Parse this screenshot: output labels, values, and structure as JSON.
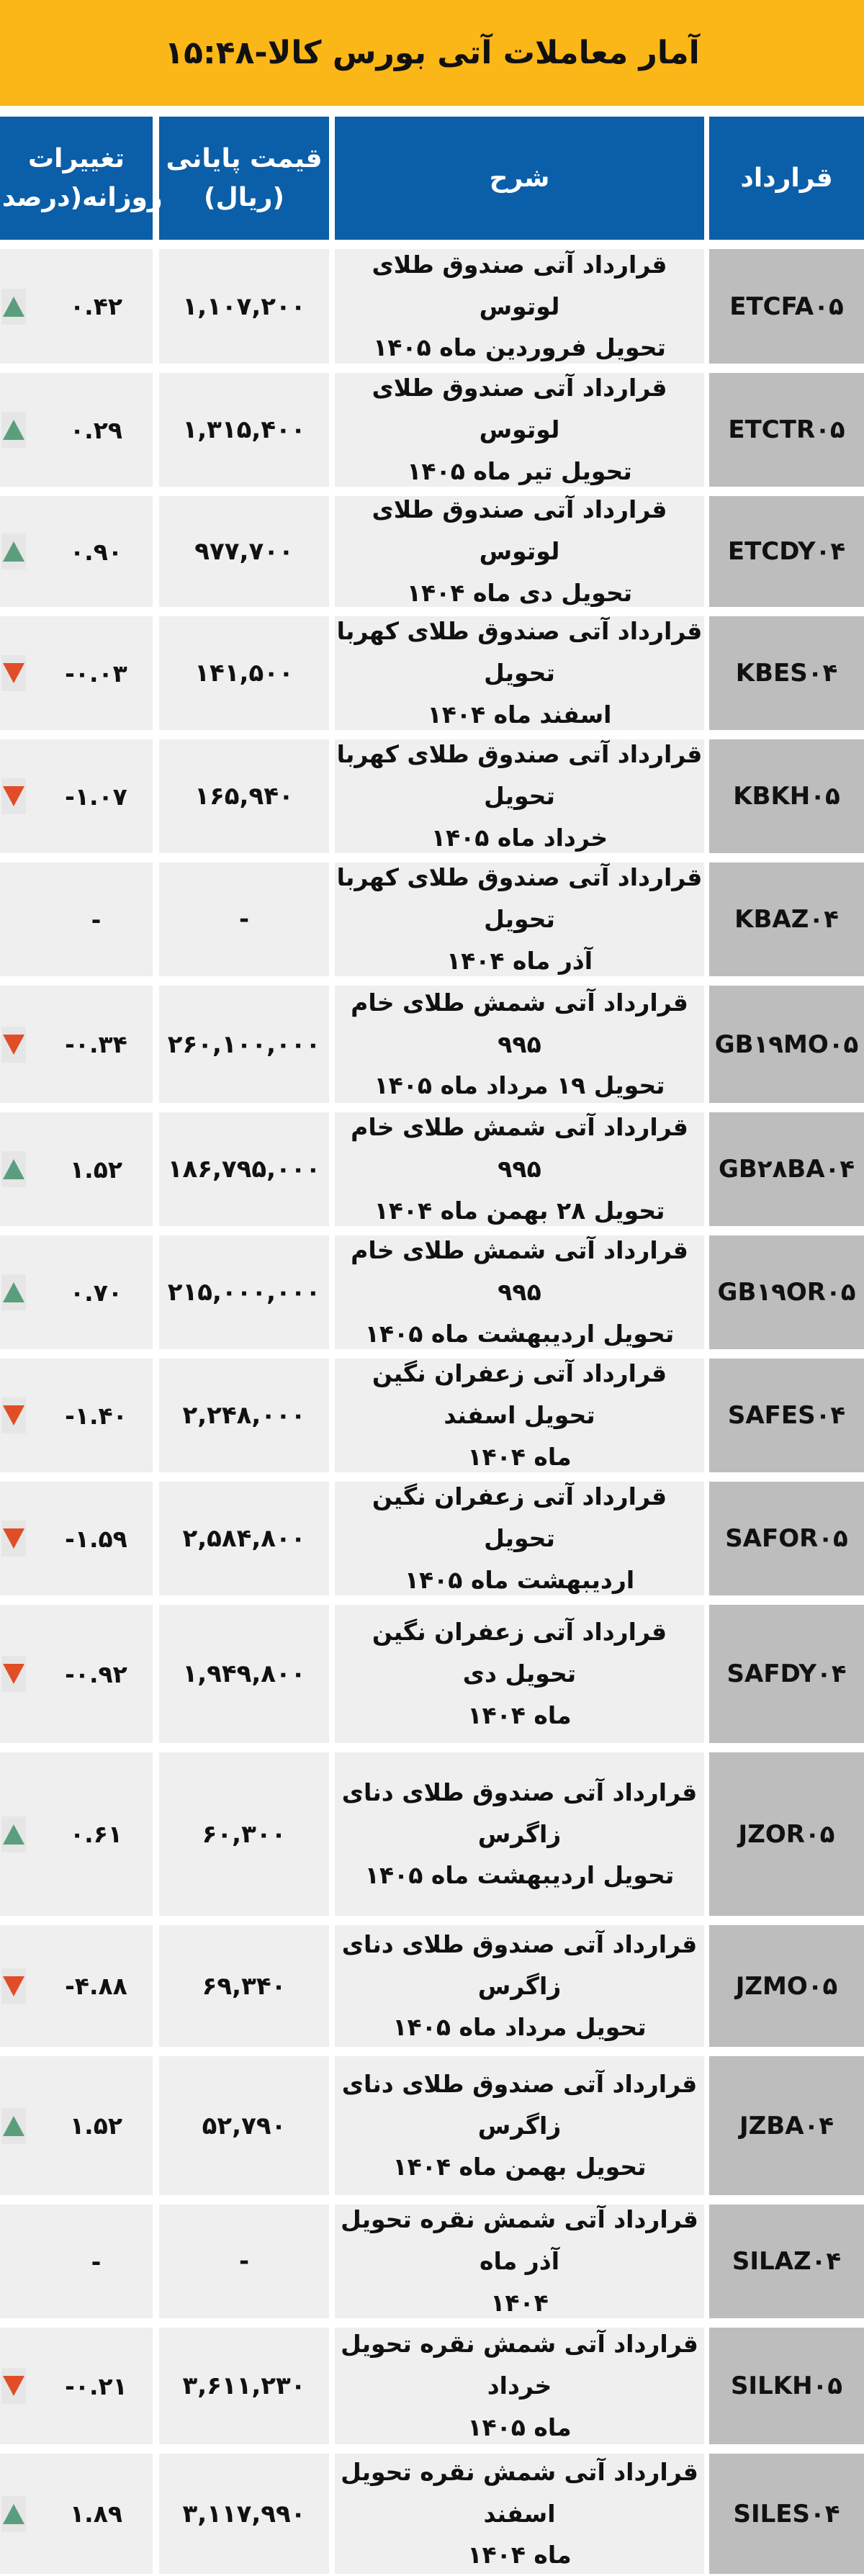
{
  "title": "آمار معاملات آتی بورس کالا-۱۵:۴۸",
  "colors": {
    "title_bg": "#fbb717",
    "header_bg": "#0b5ea8",
    "up": "#5b9e7e",
    "down": "#e04d27"
  },
  "headers": {
    "contract": "قرارداد",
    "description": "شرح",
    "price_line1": "قیمت پایانی",
    "price_line2": "(ریال)",
    "change_line1": "تغییرات",
    "change_line2": "روزانه(درصد)"
  },
  "rows": [
    {
      "code": "ETCFA۰۵",
      "desc1": "قرارداد آتی صندوق طلای لوتوس",
      "desc2": "تحویل فروردین ماه ۱۴۰۵",
      "price": "۱,۱۰۷,۲۰۰",
      "change": "۰.۴۲",
      "dir": "up"
    },
    {
      "code": "ETCTR۰۵",
      "desc1": "قرارداد آتی صندوق طلای لوتوس",
      "desc2": "تحویل تیر ماه ۱۴۰۵",
      "price": "۱,۳۱۵,۴۰۰",
      "change": "۰.۲۹",
      "dir": "up"
    },
    {
      "code": "ETCDY۰۴",
      "desc1": "قرارداد آتی صندوق طلای لوتوس",
      "desc2": "تحویل دی ماه ۱۴۰۴",
      "price": "۹۷۷,۷۰۰",
      "change": "۰.۹۰",
      "dir": "up"
    },
    {
      "code": "KBES۰۴",
      "desc1": "قرارداد آتی صندوق طلای کهربا تحویل",
      "desc2": "اسفند ماه ۱۴۰۴",
      "price": "۱۴۱,۵۰۰",
      "change": "-۰.۰۳",
      "dir": "down"
    },
    {
      "code": "KBKH۰۵",
      "desc1": "قرارداد آتی صندوق طلای کهربا تحویل",
      "desc2": "خرداد ماه ۱۴۰۵",
      "price": "۱۶۵,۹۴۰",
      "change": "-۱.۰۷",
      "dir": "down"
    },
    {
      "code": "KBAZ۰۴",
      "desc1": "قرارداد آتی صندوق طلای کهربا تحویل",
      "desc2": "آذر ماه ۱۴۰۴",
      "price": "-",
      "change": "-",
      "dir": "none"
    },
    {
      "code": "GB۱۹MO۰۵",
      "desc1": "قرارداد آتی شمش طلای خام ۹۹۵",
      "desc2": "تحویل ۱۹ مرداد ماه ۱۴۰۵",
      "price": "۲۶۰,۱۰۰,۰۰۰",
      "change": "-۰.۳۴",
      "dir": "down"
    },
    {
      "code": "GB۲۸BA۰۴",
      "desc1": "قرارداد آتی شمش طلای خام ۹۹۵",
      "desc2": "تحویل ۲۸ بهمن ماه ۱۴۰۴",
      "price": "۱۸۶,۷۹۵,۰۰۰",
      "change": "۱.۵۲",
      "dir": "up"
    },
    {
      "code": "GB۱۹OR۰۵",
      "desc1": "قرارداد آتی شمش طلای خام ۹۹۵",
      "desc2": "تحویل اردیبهشت ماه ۱۴۰۵",
      "price": "۲۱۵,۰۰۰,۰۰۰",
      "change": "۰.۷۰",
      "dir": "up"
    },
    {
      "code": "SAFES۰۴",
      "desc1": "قرارداد آتی زعفران نگین تحویل اسفند",
      "desc2": "ماه ۱۴۰۴",
      "price": "۲,۲۴۸,۰۰۰",
      "change": "-۱.۴۰",
      "dir": "down"
    },
    {
      "code": "SAFOR۰۵",
      "desc1": "قرارداد آتی زعفران نگین تحویل",
      "desc2": "اردیبهشت ماه ۱۴۰۵",
      "price": "۲,۵۸۴,۸۰۰",
      "change": "-۱.۵۹",
      "dir": "down"
    },
    {
      "code": "SAFDY۰۴",
      "desc1": "قرارداد آتی زعفران نگین تحویل دی",
      "desc2": "ماه ۱۴۰۴",
      "price": "۱,۹۴۹,۸۰۰",
      "change": "-۰.۹۲",
      "dir": "down"
    },
    {
      "code": "JZOR۰۵",
      "desc1": "قرارداد آتی صندوق طلای دنای زاگرس",
      "desc2": "تحویل اردیبهشت ماه ۱۴۰۵",
      "price": "۶۰,۳۰۰",
      "change": "۰.۶۱",
      "dir": "up"
    },
    {
      "code": "JZMO۰۵",
      "desc1": "قرارداد آتی صندوق طلای دنای زاگرس",
      "desc2": "تحویل مرداد ماه ۱۴۰۵",
      "price": "۶۹,۳۴۰",
      "change": "-۴.۸۸",
      "dir": "down"
    },
    {
      "code": "JZBA۰۴",
      "desc1": "قرارداد آتی صندوق طلای دنای زاگرس",
      "desc2": "تحویل بهمن ماه ۱۴۰۴",
      "price": "۵۲,۷۹۰",
      "change": "۱.۵۲",
      "dir": "up"
    },
    {
      "code": "SILAZ۰۴",
      "desc1": "قرارداد آتی شمش نقره تحویل آذر ماه",
      "desc2": "۱۴۰۴",
      "price": "-",
      "change": "-",
      "dir": "none"
    },
    {
      "code": "SILKH۰۵",
      "desc1": "قرارداد آتی شمش نقره تحویل خرداد",
      "desc2": "ماه ۱۴۰۵",
      "price": "۳,۶۱۱,۲۳۰",
      "change": "-۰.۲۱",
      "dir": "down"
    },
    {
      "code": "SILES۰۴",
      "desc1": "قرارداد آتی شمش نقره تحویل اسفند",
      "desc2": "ماه ۱۴۰۴",
      "price": "۳,۱۱۷,۹۹۰",
      "change": "۱.۸۹",
      "dir": "up"
    }
  ]
}
